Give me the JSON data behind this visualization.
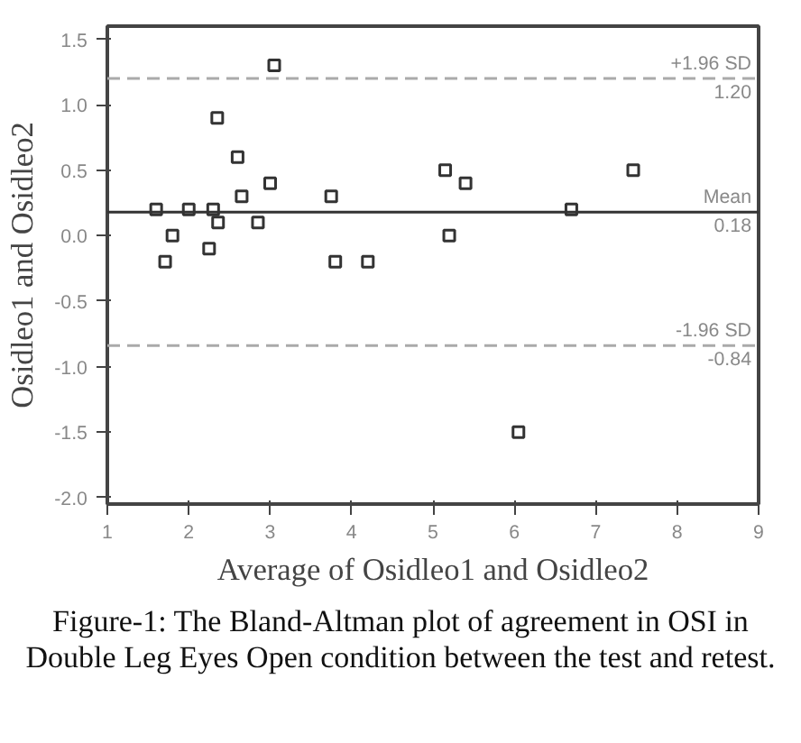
{
  "chart_data": {
    "type": "scatter",
    "marker": "square",
    "grid": false,
    "xlabel": "Average of Osidleo1 and Osidleo2",
    "ylabel": "Osidleo1 and Osidleo2",
    "xlim": [
      1,
      9
    ],
    "xticks": [
      1,
      2,
      3,
      4,
      5,
      6,
      7,
      8,
      9
    ],
    "ylim": [
      -2.05,
      1.6
    ],
    "yticks": [
      {
        "value": -2,
        "label": "-2.0"
      },
      -1.5,
      {
        "value": -1,
        "label": "-1.0"
      },
      -0.5,
      {
        "value": 0,
        "label": "0.0"
      },
      0.5,
      {
        "value": 1,
        "label": "1.0"
      },
      1.5
    ],
    "series": [
      {
        "color": "#333333",
        "x": [
          1.6,
          1.71,
          1.8,
          2.0,
          2.25,
          2.3,
          2.35,
          2.36,
          2.6,
          2.65,
          2.85,
          3.0,
          3.05,
          3.75,
          3.8,
          4.2,
          5.15,
          5.2,
          5.4,
          6.05,
          6.7,
          7.46
        ],
        "values": [
          0.2,
          -0.2,
          0.0,
          0.2,
          -0.1,
          0.2,
          0.9,
          0.1,
          0.6,
          0.3,
          0.1,
          0.4,
          1.3,
          0.3,
          -0.2,
          -0.2,
          0.5,
          0.0,
          0.4,
          -1.5,
          0.2,
          0.5
        ]
      }
    ],
    "ref_lines": [
      {
        "axis": "y",
        "value": 1.2,
        "label": "+1.96 SD\n1.20",
        "color": "#aaaaaa",
        "line_style": "dashed"
      },
      {
        "axis": "y",
        "value": 0.18,
        "label": "Mean\n0.18",
        "color": "#333333",
        "line_style": "solid"
      },
      {
        "axis": "y",
        "value": -0.84,
        "label": "-1.96 SD\n-0.84",
        "color": "#aaaaaa",
        "line_style": "dashed"
      }
    ],
    "annotations": [
      "Figure-1: The Bland-Altman plot of agreement in OSI in Double Leg Eyes Open condition between the test and retest."
    ]
  }
}
